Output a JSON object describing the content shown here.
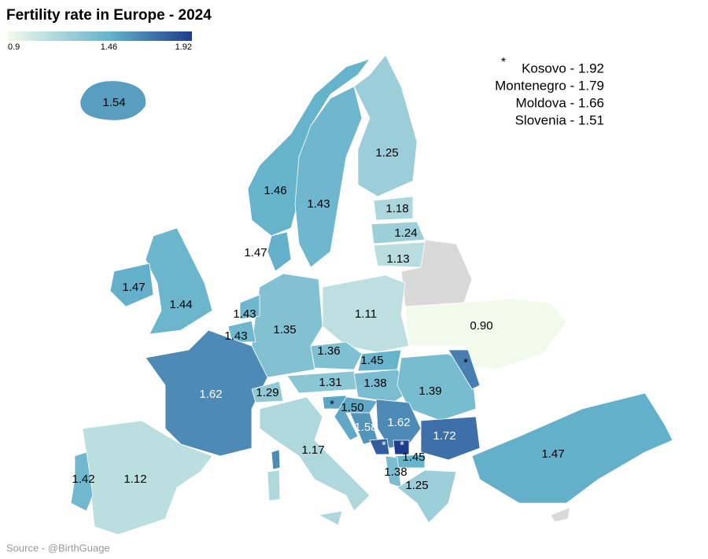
{
  "title": "Fertility rate in Europe - 2024",
  "legend": {
    "ticks": [
      0.9,
      1.46,
      1.92
    ],
    "colors": [
      "#f2faec",
      "#66b3cc",
      "#1e3d8c"
    ]
  },
  "regions": [
    {
      "value": 1.54,
      "label": "1.54"
    },
    {
      "value": 1.46,
      "label": "1.46"
    },
    {
      "value": 1.43,
      "label": "1.43"
    },
    {
      "value": 1.25,
      "label": "1.25"
    },
    {
      "value": 1.18,
      "label": "1.18"
    },
    {
      "value": 1.24,
      "label": "1.24"
    },
    {
      "value": 1.13,
      "label": "1.13"
    },
    {
      "value": 0.9,
      "label": "0.90"
    },
    {
      "value": 1.11,
      "label": "1.11"
    },
    {
      "value": 1.47,
      "label": "1.47"
    },
    {
      "value": 1.35,
      "label": "1.35"
    },
    {
      "value": 1.43,
      "label": "1.43"
    },
    {
      "value": 1.43,
      "label": "1.43"
    },
    {
      "value": 1.44,
      "label": "1.44"
    },
    {
      "value": 1.47,
      "label": "1.47"
    },
    {
      "value": 1.62,
      "label": "1.62"
    },
    {
      "value": 1.36,
      "label": "1.36"
    },
    {
      "value": 1.45,
      "label": "1.45"
    },
    {
      "value": 1.31,
      "label": "1.31"
    },
    {
      "value": 1.29,
      "label": "1.29"
    },
    {
      "value": 1.38,
      "label": "1.38"
    },
    {
      "value": 1.39,
      "label": "1.39"
    },
    {
      "value": 1.66,
      "label": "*"
    },
    {
      "value": 1.51,
      "label": "*"
    },
    {
      "value": 1.5,
      "label": "1.50"
    },
    {
      "value": 1.58,
      "label": "1.58"
    },
    {
      "value": 1.62,
      "label": "1.62"
    },
    {
      "value": 1.72,
      "label": "1.72"
    },
    {
      "value": 1.79,
      "label": "*"
    },
    {
      "value": 1.92,
      "label": "*"
    },
    {
      "value": 1.45,
      "label": "1.45"
    },
    {
      "value": 1.38,
      "label": "1.38"
    },
    {
      "value": 1.25,
      "label": "1.25"
    },
    {
      "value": 1.47,
      "label": "1.47"
    },
    {
      "value": 1.17,
      "label": "1.17"
    },
    {
      "value": 1.12,
      "label": "1.12"
    },
    {
      "value": 1.42,
      "label": "1.42"
    }
  ],
  "annotation_marker": "*",
  "annotations": [
    "Kosovo - 1.92",
    "Montenegro - 1.79",
    "Moldova - 1.66",
    "Slovenia - 1.51"
  ],
  "source": "Source - @BirthGuage"
}
